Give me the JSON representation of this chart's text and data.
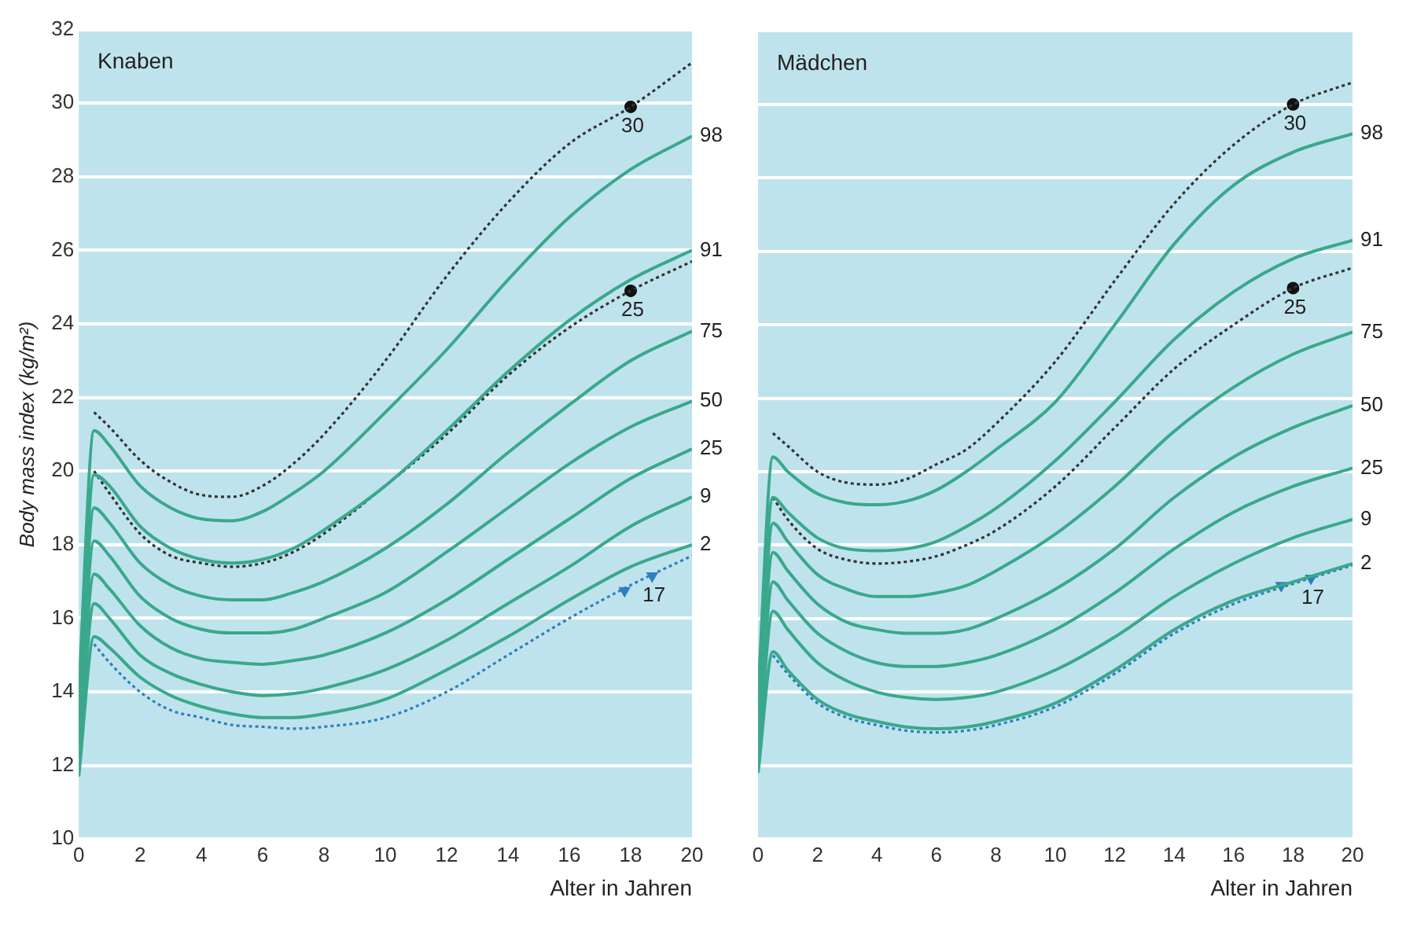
{
  "chart_data": [
    {
      "type": "line",
      "title": "Knaben",
      "xlabel": "Alter in Jahren",
      "ylabel": "Body mass index (kg/m²)",
      "x": [
        0,
        0.5,
        1,
        2,
        3,
        4,
        5,
        6,
        7,
        8,
        10,
        12,
        14,
        16,
        18,
        20
      ],
      "xlim": [
        0,
        20
      ],
      "xticks": [
        0,
        2,
        4,
        6,
        8,
        10,
        12,
        14,
        16,
        18,
        20
      ],
      "ylim": [
        10,
        32
      ],
      "yticks": [
        10,
        12,
        14,
        16,
        18,
        20,
        22,
        24,
        26,
        28,
        30,
        32
      ],
      "grid": "y",
      "series": [
        {
          "name": "98",
          "color": "#3aa88c",
          "values": [
            14,
            21.1,
            20.7,
            19.6,
            19.0,
            18.7,
            18.65,
            18.9,
            19.4,
            20.0,
            21.6,
            23.3,
            25.2,
            26.9,
            28.2,
            29.1
          ]
        },
        {
          "name": "91",
          "color": "#3aa88c",
          "values": [
            13.5,
            19.9,
            19.6,
            18.5,
            17.9,
            17.6,
            17.5,
            17.6,
            17.9,
            18.4,
            19.6,
            21.1,
            22.7,
            24.1,
            25.2,
            26.0
          ]
        },
        {
          "name": "75",
          "color": "#3aa88c",
          "values": [
            13.2,
            19.0,
            18.6,
            17.5,
            16.9,
            16.6,
            16.5,
            16.5,
            16.7,
            17.0,
            17.9,
            19.1,
            20.5,
            21.8,
            23.0,
            23.8
          ]
        },
        {
          "name": "50",
          "color": "#3aa88c",
          "values": [
            12.9,
            18.1,
            17.7,
            16.6,
            16.0,
            15.7,
            15.6,
            15.6,
            15.7,
            16.0,
            16.7,
            17.8,
            19.0,
            20.2,
            21.2,
            21.9
          ]
        },
        {
          "name": "25",
          "color": "#3aa88c",
          "values": [
            12.6,
            17.2,
            16.8,
            15.8,
            15.2,
            14.9,
            14.8,
            14.75,
            14.85,
            15.0,
            15.6,
            16.5,
            17.6,
            18.7,
            19.8,
            20.6
          ]
        },
        {
          "name": "9",
          "color": "#3aa88c",
          "values": [
            12.2,
            16.4,
            16.0,
            15.0,
            14.5,
            14.2,
            14.0,
            13.9,
            13.95,
            14.1,
            14.6,
            15.4,
            16.4,
            17.4,
            18.5,
            19.3
          ]
        },
        {
          "name": "2",
          "color": "#3aa88c",
          "values": [
            11.7,
            15.5,
            15.2,
            14.4,
            13.9,
            13.6,
            13.4,
            13.3,
            13.3,
            13.4,
            13.8,
            14.6,
            15.5,
            16.5,
            17.4,
            18.0
          ]
        },
        {
          "color": "#333333",
          "line_style": "dotted",
          "x": [
            0.5,
            1,
            2,
            3,
            4,
            5,
            6,
            7,
            8,
            10,
            12,
            14,
            16,
            18,
            20
          ],
          "values": [
            21.6,
            21.2,
            20.3,
            19.7,
            19.35,
            19.3,
            19.6,
            20.2,
            21.0,
            23.0,
            25.3,
            27.3,
            28.9,
            29.9,
            31.1
          ]
        },
        {
          "color": "#333333",
          "line_style": "dotted",
          "x": [
            0.5,
            1,
            2,
            3,
            4,
            5,
            6,
            7,
            8,
            10,
            12,
            14,
            16,
            18,
            20
          ],
          "values": [
            20.0,
            19.4,
            18.3,
            17.7,
            17.5,
            17.4,
            17.5,
            17.8,
            18.3,
            19.6,
            21.0,
            22.6,
            23.9,
            24.9,
            25.7
          ]
        },
        {
          "color": "#2f7fc0",
          "line_style": "dotted",
          "x": [
            0.5,
            1,
            2,
            3,
            4,
            5,
            6,
            7,
            8,
            10,
            12,
            14,
            16,
            18,
            20
          ],
          "values": [
            15.3,
            14.8,
            14.0,
            13.5,
            13.3,
            13.1,
            13.05,
            13.0,
            13.05,
            13.3,
            14.0,
            15.0,
            16.0,
            16.9,
            17.7
          ]
        },
        {
          "type": "scatter",
          "name": "30",
          "color": "#111111",
          "marker": "circle",
          "x": [
            18
          ],
          "values": [
            29.9
          ]
        },
        {
          "type": "scatter",
          "name": "25",
          "color": "#111111",
          "marker": "circle",
          "x": [
            18
          ],
          "values": [
            24.9
          ]
        },
        {
          "type": "scatter",
          "name": "17",
          "color": "#2f7fc0",
          "marker": "triangle",
          "x": [
            17.8,
            18.7
          ],
          "values": [
            16.75,
            17.15
          ]
        }
      ]
    },
    {
      "type": "line",
      "title": "Mädchen",
      "xlabel": "Alter in Jahren",
      "x": [
        0,
        0.5,
        1,
        2,
        3,
        4,
        5,
        6,
        7,
        8,
        10,
        12,
        14,
        16,
        18,
        20
      ],
      "xlim": [
        0,
        20
      ],
      "xticks": [
        0,
        2,
        4,
        6,
        8,
        10,
        12,
        14,
        16,
        18,
        20
      ],
      "ylim": [
        10,
        32
      ],
      "yticks": [
        10,
        12,
        14,
        16,
        18,
        20,
        22,
        24,
        26,
        28,
        30,
        32
      ],
      "grid": "y",
      "tick_labels": "x",
      "series": [
        {
          "name": "98",
          "color": "#3aa88c",
          "values": [
            14,
            20.4,
            20.0,
            19.4,
            19.15,
            19.1,
            19.2,
            19.5,
            20.0,
            20.6,
            21.9,
            24.0,
            26.2,
            27.8,
            28.7,
            29.2
          ]
        },
        {
          "name": "91",
          "color": "#3aa88c",
          "values": [
            13.6,
            19.3,
            18.9,
            18.2,
            17.9,
            17.85,
            17.9,
            18.1,
            18.5,
            19.0,
            20.3,
            21.9,
            23.6,
            24.9,
            25.8,
            26.3
          ]
        },
        {
          "name": "75",
          "color": "#3aa88c",
          "values": [
            13.2,
            18.6,
            18.1,
            17.2,
            16.8,
            16.6,
            16.6,
            16.7,
            16.9,
            17.3,
            18.3,
            19.6,
            21.1,
            22.3,
            23.2,
            23.8
          ]
        },
        {
          "name": "50",
          "color": "#3aa88c",
          "values": [
            12.9,
            17.8,
            17.3,
            16.4,
            15.9,
            15.7,
            15.6,
            15.6,
            15.7,
            16.0,
            16.8,
            17.9,
            19.3,
            20.4,
            21.2,
            21.8
          ]
        },
        {
          "name": "25",
          "color": "#3aa88c",
          "values": [
            12.6,
            17.0,
            16.5,
            15.6,
            15.1,
            14.8,
            14.7,
            14.7,
            14.8,
            15.0,
            15.7,
            16.7,
            17.9,
            18.9,
            19.6,
            20.1
          ]
        },
        {
          "name": "9",
          "color": "#3aa88c",
          "values": [
            12.2,
            16.2,
            15.7,
            14.8,
            14.3,
            14.0,
            13.85,
            13.8,
            13.85,
            14.0,
            14.6,
            15.5,
            16.6,
            17.5,
            18.2,
            18.7
          ]
        },
        {
          "name": "2",
          "color": "#3aa88c",
          "values": [
            11.8,
            15.1,
            14.6,
            13.8,
            13.4,
            13.2,
            13.05,
            13.0,
            13.05,
            13.2,
            13.7,
            14.6,
            15.7,
            16.5,
            17.0,
            17.5
          ]
        },
        {
          "color": "#333333",
          "line_style": "dotted",
          "x": [
            0.5,
            1,
            2,
            3,
            4,
            5,
            6,
            7,
            8,
            10,
            12,
            14,
            16,
            18,
            20
          ],
          "values": [
            21.05,
            20.7,
            20.0,
            19.7,
            19.65,
            19.8,
            20.2,
            20.6,
            21.3,
            23.0,
            25.2,
            27.3,
            28.9,
            30.0,
            30.6
          ]
        },
        {
          "color": "#333333",
          "line_style": "dotted",
          "x": [
            0.5,
            1,
            2,
            3,
            4,
            5,
            6,
            7,
            8,
            10,
            12,
            14,
            16,
            18,
            20
          ],
          "values": [
            19.3,
            18.7,
            17.9,
            17.6,
            17.5,
            17.55,
            17.7,
            18.0,
            18.4,
            19.6,
            21.2,
            22.8,
            24.0,
            25.0,
            25.55
          ]
        },
        {
          "color": "#2f7fc0",
          "line_style": "dotted",
          "x": [
            0.5,
            1,
            2,
            3,
            4,
            5,
            6,
            7,
            8,
            10,
            12,
            14,
            16,
            18,
            20
          ],
          "values": [
            15.0,
            14.5,
            13.7,
            13.3,
            13.1,
            12.95,
            12.9,
            12.95,
            13.1,
            13.6,
            14.5,
            15.6,
            16.4,
            16.95,
            17.45
          ]
        },
        {
          "type": "scatter",
          "name": "30",
          "color": "#111111",
          "marker": "circle",
          "x": [
            18
          ],
          "values": [
            30.0
          ]
        },
        {
          "type": "scatter",
          "name": "25",
          "color": "#111111",
          "marker": "circle",
          "x": [
            18
          ],
          "values": [
            25.0
          ]
        },
        {
          "type": "scatter",
          "name": "17",
          "color": "#2f7fc0",
          "marker": "triangle",
          "x": [
            17.6,
            18.6
          ],
          "values": [
            16.9,
            17.1
          ]
        }
      ]
    }
  ]
}
